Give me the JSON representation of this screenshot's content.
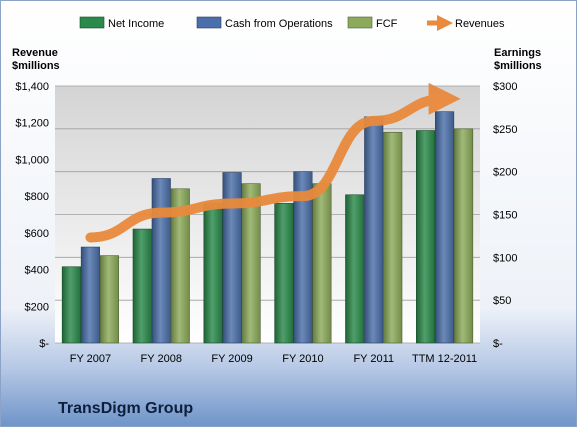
{
  "chart_data": {
    "type": "bar",
    "categories": [
      "FY 2007",
      "FY 2008",
      "FY 2009",
      "FY 2010",
      "FY 2011",
      "TTM 12-2011"
    ],
    "series": [
      {
        "name": "Net Income",
        "axis": "right",
        "values": [
          89,
          133,
          163,
          163,
          173,
          248
        ],
        "color": "#2a8a4a"
      },
      {
        "name": "Cash from Operations",
        "axis": "right",
        "values": [
          112,
          192,
          199,
          200,
          264,
          270
        ],
        "color": "#4a6faa"
      },
      {
        "name": "FCF",
        "axis": "right",
        "values": [
          102,
          180,
          186,
          186,
          246,
          250
        ],
        "color": "#8cab5a"
      },
      {
        "name": "Revenues",
        "axis": "left",
        "type": "line",
        "values": [
          575,
          710,
          760,
          800,
          1210,
          1330
        ],
        "color": "#e98a3c"
      }
    ],
    "left_axis": {
      "title_line1": "Revenue",
      "title_line2": "$millions",
      "ylim": [
        0,
        1400
      ],
      "ticks": [
        0,
        200,
        400,
        600,
        800,
        1000,
        1200,
        1400
      ],
      "tick_labels": [
        "$-",
        "$200",
        "$400",
        "$600",
        "$800",
        "$1,000",
        "$1,200",
        "$1,400"
      ]
    },
    "right_axis": {
      "title_line1": "Earnings",
      "title_line2": "$millions",
      "ylim": [
        0,
        300
      ],
      "ticks": [
        0,
        50,
        100,
        150,
        200,
        250,
        300
      ],
      "tick_labels": [
        "$-",
        "$50",
        "$100",
        "$150",
        "$200",
        "$250",
        "$300"
      ]
    },
    "legend_position": "top",
    "grid": true,
    "company": "TransDigm Group"
  }
}
